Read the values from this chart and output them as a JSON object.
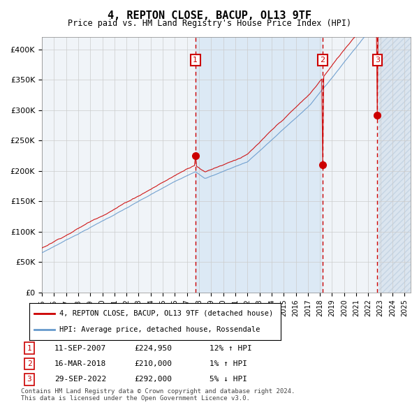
{
  "title": "4, REPTON CLOSE, BACUP, OL13 9TF",
  "subtitle": "Price paid vs. HM Land Registry's House Price Index (HPI)",
  "ylabel": "",
  "xlim_start": 1995.0,
  "xlim_end": 2025.5,
  "ylim": [
    0,
    420000
  ],
  "yticks": [
    0,
    50000,
    100000,
    150000,
    200000,
    250000,
    300000,
    350000,
    400000
  ],
  "ytick_labels": [
    "£0",
    "£50K",
    "£100K",
    "£150K",
    "£200K",
    "£250K",
    "£300K",
    "£350K",
    "£400K"
  ],
  "xtick_years": [
    1995,
    1996,
    1997,
    1998,
    1999,
    2000,
    2001,
    2002,
    2003,
    2004,
    2005,
    2006,
    2007,
    2008,
    2009,
    2010,
    2011,
    2012,
    2013,
    2014,
    2015,
    2016,
    2017,
    2018,
    2019,
    2020,
    2021,
    2022,
    2023,
    2024,
    2025
  ],
  "sale_dates": [
    2007.69,
    2018.21,
    2022.75
  ],
  "sale_prices": [
    224950,
    210000,
    292000
  ],
  "sale_labels": [
    "1",
    "2",
    "3"
  ],
  "sale_pct": [
    "12% ↑ HPI",
    "1% ↑ HPI",
    "5% ↓ HPI"
  ],
  "sale_date_strs": [
    "11-SEP-2007",
    "16-MAR-2018",
    "29-SEP-2022"
  ],
  "red_line_color": "#cc0000",
  "blue_line_color": "#6699cc",
  "shaded_region_color": "#dce9f5",
  "hatch_region_color": "#c8d8e8",
  "legend_red_label": "4, REPTON CLOSE, BACUP, OL13 9TF (detached house)",
  "legend_blue_label": "HPI: Average price, detached house, Rossendale",
  "footnote": "Contains HM Land Registry data © Crown copyright and database right 2024.\nThis data is licensed under the Open Government Licence v3.0.",
  "background_color": "#ffffff",
  "plot_bg_color": "#f0f4f8"
}
